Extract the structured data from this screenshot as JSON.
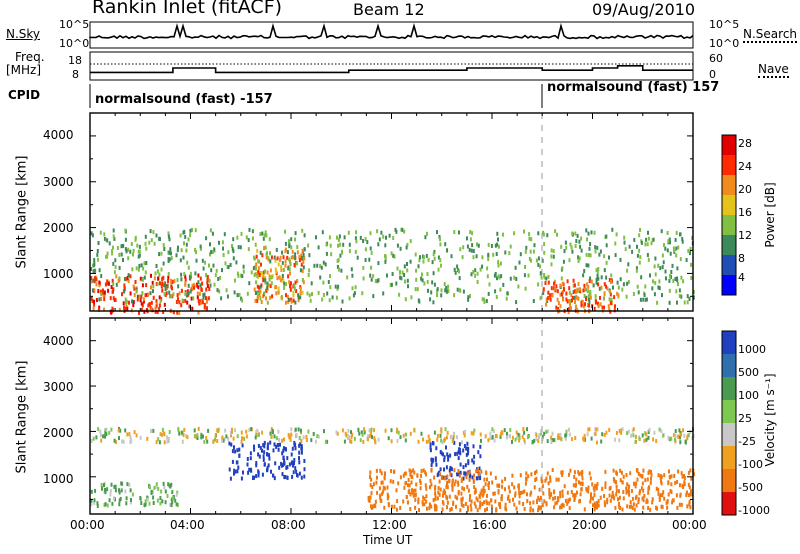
{
  "header": {
    "station": "Rankin Inlet (fitACF)",
    "beam": "Beam 12",
    "date": "09/Aug/2010"
  },
  "noise_panel": {
    "left_label": "N.Sky",
    "right_label": "N.Search",
    "ticks_left": [
      "10^5",
      "10^0"
    ],
    "ticks_right": [
      "10^5",
      "10^0"
    ]
  },
  "freq_panel": {
    "left_label_1": "Freq.",
    "left_label_2": "[MHz]",
    "right_label": "Nave",
    "ticks_left": [
      "18",
      "8"
    ],
    "ticks_right": [
      "60",
      "0"
    ]
  },
  "cpid_panel": {
    "label": "CPID",
    "segments": [
      {
        "text": "normalsound (fast) -157",
        "start_hour": 0
      },
      {
        "text": "normalsound (fast) 157",
        "start_hour": 18
      }
    ]
  },
  "power_panel": {
    "ylabel": "Slant Range [km]",
    "yticks": [
      "4000",
      "3000",
      "2000",
      "1000"
    ],
    "colorbar_label": "Power [dB]",
    "colorbar_ticks": [
      "28",
      "24",
      "20",
      "16",
      "12",
      "8",
      "4"
    ],
    "colors": [
      "#0000ff",
      "#1f4fb4",
      "#3c8a5a",
      "#7fc043",
      "#e6c31a",
      "#f08c1e",
      "#ff2a00",
      "#e00000"
    ]
  },
  "velocity_panel": {
    "ylabel": "Slant Range [km]",
    "yticks": [
      "4000",
      "3000",
      "2000",
      "1000"
    ],
    "colorbar_label": "Velocity [m s⁻¹]",
    "colorbar_ticks": [
      "1000",
      "500",
      "100",
      "25",
      "-25",
      "-100",
      "-500",
      "-1000"
    ],
    "colors": [
      "#2040c0",
      "#2f6fae",
      "#4a9a50",
      "#7cc850",
      "#c8c8c8",
      "#f0a020",
      "#f07810",
      "#e01010"
    ]
  },
  "xaxis": {
    "ticks": [
      "00:00",
      "04:00",
      "08:00",
      "12:00",
      "16:00",
      "20:00",
      "00:00"
    ],
    "label": "Time UT"
  },
  "chart_data": {
    "type": "heatmap",
    "title": "Rankin Inlet (fitACF)  Beam 12  09/Aug/2010",
    "xlabel": "Time UT",
    "x_range_hours": [
      0,
      24
    ],
    "ylabel": "Slant Range [km]",
    "ylim_km": [
      180,
      4500
    ],
    "panels": [
      {
        "name": "Power",
        "unit": "dB",
        "range": [
          0,
          30
        ],
        "regions": [
          {
            "t": [
              0,
              4.8
            ],
            "r": [
              180,
              1000
            ],
            "value": 26
          },
          {
            "t": [
              6.5,
              8.5
            ],
            "r": [
              400,
              1600
            ],
            "value": 22
          },
          {
            "t": [
              0,
              24
            ],
            "r": [
              400,
              2000
            ],
            "value": 12
          },
          {
            "t": [
              18,
              21
            ],
            "r": [
              200,
              900
            ],
            "value": 24
          }
        ]
      },
      {
        "name": "Velocity",
        "unit": "m s-1",
        "range": [
          -1000,
          1000
        ],
        "regions": [
          {
            "t": [
              5.5,
              8.5
            ],
            "r": [
              1000,
              1800
            ],
            "value": 800
          },
          {
            "t": [
              13.5,
              15.5
            ],
            "r": [
              1000,
              1800
            ],
            "value": 700
          },
          {
            "t": [
              0,
              3.5
            ],
            "r": [
              400,
              900
            ],
            "value": 80
          },
          {
            "t": [
              11,
              24
            ],
            "r": [
              300,
              1200
            ],
            "value": -300
          },
          {
            "t": [
              0,
              24
            ],
            "r": [
              1800,
              2100
            ],
            "value": 0
          }
        ]
      }
    ],
    "noise_sky": [],
    "freq_mhz": {
      "t": [
        0,
        2.7,
        3.3,
        4.6,
        5.0,
        9.7,
        10.3,
        12.0,
        15.0,
        18.0,
        20.0,
        21.0,
        22.0,
        24.0
      ],
      "f": [
        11,
        11,
        13,
        13,
        11,
        11,
        12,
        12,
        13,
        12,
        13,
        14,
        12,
        12
      ]
    }
  }
}
